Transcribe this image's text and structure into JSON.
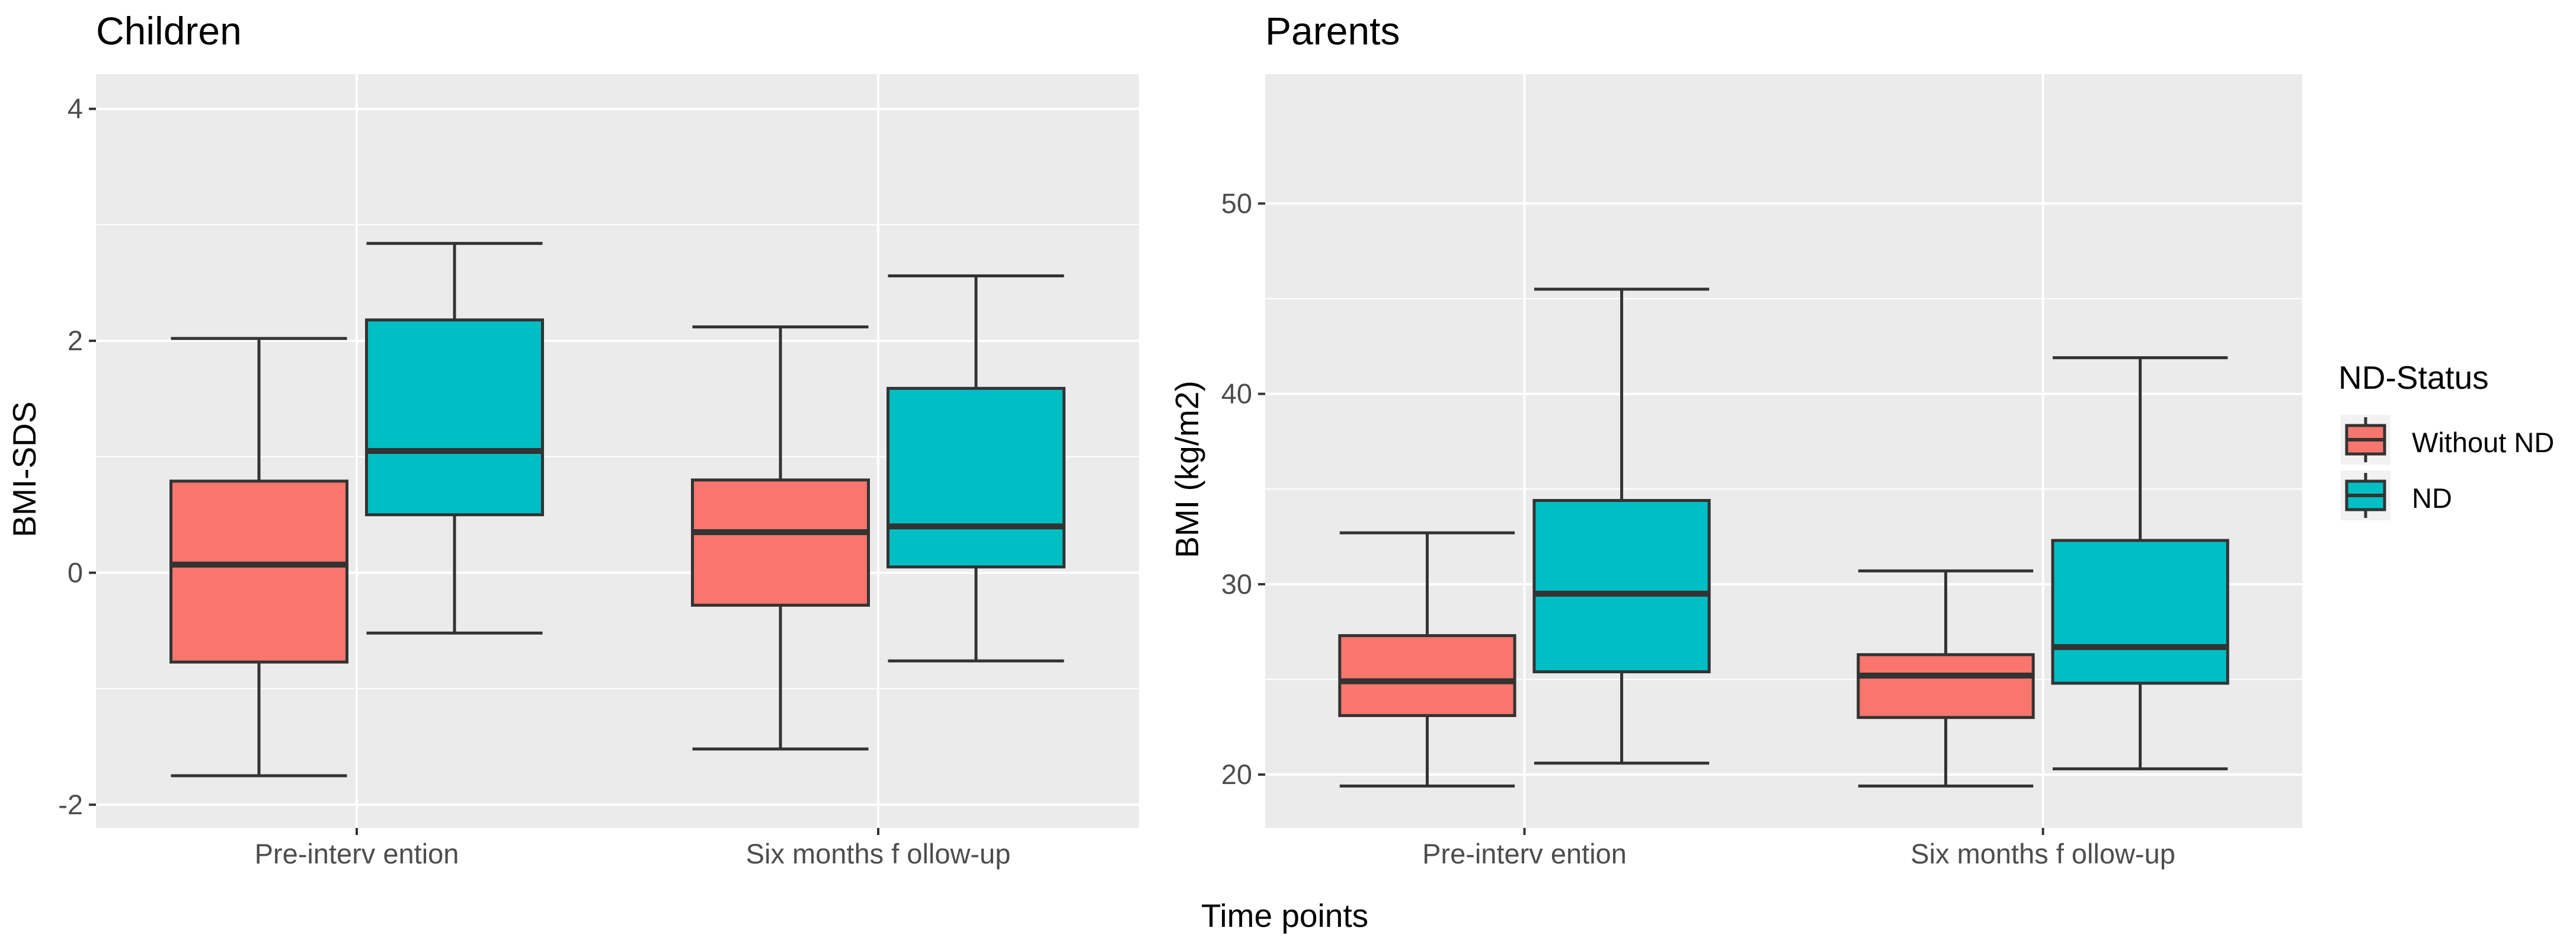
{
  "figure": {
    "x_axis_title": "Time points"
  },
  "legend": {
    "title": "ND-Status",
    "entries": [
      {
        "label": "Without ND",
        "color": "#f8766d"
      },
      {
        "label": "ND",
        "color": "#00bfc4"
      }
    ]
  },
  "chart_data": [
    {
      "type": "boxplot",
      "title": "Children",
      "xlabel": "",
      "ylabel": "BMI-SDS",
      "ylim": [
        -2.2,
        4.3
      ],
      "yticks": [
        -2,
        0,
        2,
        4
      ],
      "ytick_labels": [
        "-2",
        "0",
        "2",
        "4"
      ],
      "grid": true,
      "categories": [
        "Pre-interv ention",
        "Six months f ollow-up"
      ],
      "series": [
        {
          "name": "Without ND",
          "boxes": [
            {
              "min": -1.75,
              "q1": -0.77,
              "median": 0.07,
              "q3": 0.79,
              "max": 2.02
            },
            {
              "min": -1.52,
              "q1": -0.28,
              "median": 0.35,
              "q3": 0.8,
              "max": 2.12
            }
          ]
        },
        {
          "name": "ND",
          "boxes": [
            {
              "min": -0.52,
              "q1": 0.5,
              "median": 1.05,
              "q3": 2.18,
              "max": 2.84
            },
            {
              "min": -0.76,
              "q1": 0.05,
              "median": 0.4,
              "q3": 1.59,
              "max": 2.56
            }
          ]
        }
      ]
    },
    {
      "type": "boxplot",
      "title": "Parents",
      "xlabel": "",
      "ylabel": "BMI (kg/m2)",
      "ylim": [
        17.2,
        56.8
      ],
      "yticks": [
        20,
        30,
        40,
        50
      ],
      "ytick_labels": [
        "20",
        "30",
        "40",
        "50"
      ],
      "grid": true,
      "categories": [
        "Pre-interv ention",
        "Six months f ollow-up"
      ],
      "series": [
        {
          "name": "Without ND",
          "boxes": [
            {
              "min": 19.4,
              "q1": 23.1,
              "median": 24.9,
              "q3": 27.3,
              "max": 32.7
            },
            {
              "min": 19.4,
              "q1": 23.0,
              "median": 25.2,
              "q3": 26.3,
              "max": 30.7
            }
          ]
        },
        {
          "name": "ND",
          "boxes": [
            {
              "min": 20.6,
              "q1": 25.4,
              "median": 29.5,
              "q3": 34.4,
              "max": 45.5
            },
            {
              "min": 20.3,
              "q1": 24.8,
              "median": 26.7,
              "q3": 32.3,
              "max": 41.9
            }
          ]
        }
      ]
    }
  ]
}
